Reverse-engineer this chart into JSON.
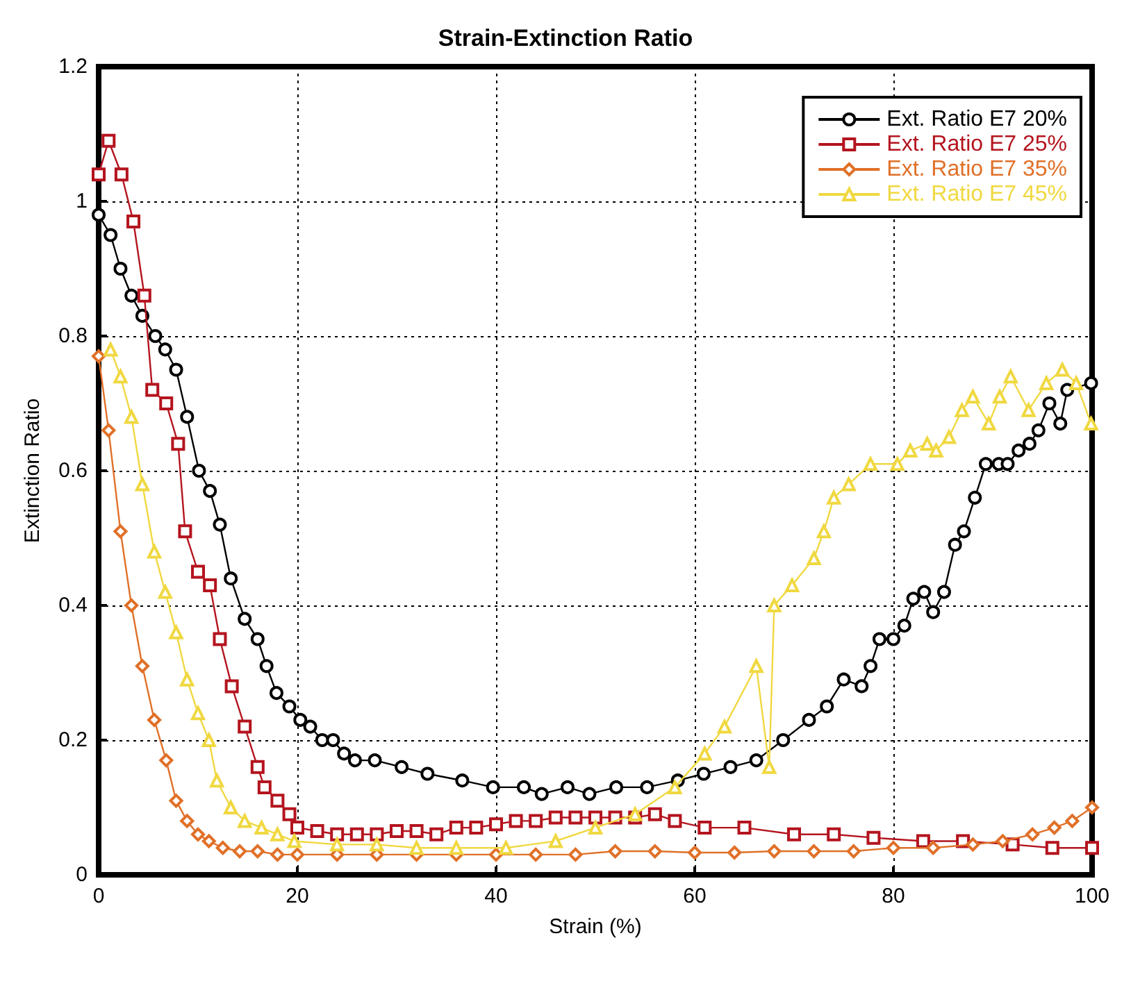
{
  "chart_data": {
    "type": "line",
    "title": "Strain-Extinction Ratio",
    "xlabel": "Strain (%)",
    "ylabel": "Extinction Ratio",
    "xlim": [
      0,
      100
    ],
    "xticks": [
      0,
      20,
      40,
      60,
      80,
      100
    ],
    "ylim": [
      0,
      1.2
    ],
    "yticks": [
      0,
      0.2,
      0.4,
      0.6,
      0.8,
      1,
      1.2
    ],
    "grid": true,
    "legend": "top right",
    "line_style": "solid",
    "series": [
      {
        "name": "Ext. Ratio E7 20%",
        "color": "#000000",
        "marker": "circle",
        "x": [
          0,
          1.2,
          2.2,
          3.3,
          4.4,
          5.7,
          6.7,
          7.8,
          8.9,
          10.1,
          11.2,
          12.2,
          13.3,
          14.7,
          16,
          16.9,
          17.9,
          19.2,
          20.3,
          21.3,
          22.5,
          23.6,
          24.7,
          25.8,
          27.8,
          30.5,
          33.1,
          36.6,
          39.7,
          42.8,
          44.6,
          47.2,
          49.4,
          52.1,
          55.2,
          58.3,
          60.9,
          63.6,
          66.2,
          68.9,
          71.5,
          73.3,
          75,
          76.8,
          77.7,
          78.6,
          80,
          81.1,
          82,
          83.1,
          84,
          85.1,
          86.2,
          87.1,
          88.2,
          89.3,
          90.6,
          91.5,
          92.6,
          93.7,
          94.6,
          95.7,
          96.8,
          97.5,
          99.9
        ],
        "values": [
          0.98,
          0.95,
          0.9,
          0.86,
          0.83,
          0.8,
          0.78,
          0.75,
          0.68,
          0.6,
          0.57,
          0.52,
          0.44,
          0.38,
          0.35,
          0.31,
          0.27,
          0.25,
          0.23,
          0.22,
          0.2,
          0.2,
          0.18,
          0.17,
          0.17,
          0.16,
          0.15,
          0.14,
          0.13,
          0.13,
          0.12,
          0.13,
          0.12,
          0.13,
          0.13,
          0.14,
          0.15,
          0.16,
          0.17,
          0.2,
          0.23,
          0.25,
          0.29,
          0.28,
          0.31,
          0.35,
          0.35,
          0.37,
          0.41,
          0.42,
          0.39,
          0.42,
          0.49,
          0.51,
          0.56,
          0.61,
          0.61,
          0.61,
          0.63,
          0.64,
          0.66,
          0.7,
          0.67,
          0.72,
          0.73
        ]
      },
      {
        "name": "Ext. Ratio E7 25%",
        "color": "#b4141e",
        "marker": "square",
        "x": [
          0,
          1,
          2.3,
          3.5,
          4.6,
          5.4,
          6.8,
          8,
          8.7,
          10,
          11.2,
          12.2,
          13.4,
          14.7,
          16,
          16.7,
          18,
          19.2,
          20,
          22,
          24,
          26,
          28,
          30,
          32,
          34,
          36,
          38,
          40,
          42,
          44,
          46,
          48,
          50,
          52,
          54,
          56,
          58,
          61,
          65,
          70,
          74,
          78,
          83,
          87,
          92,
          96,
          100
        ],
        "values": [
          1.04,
          1.09,
          1.04,
          0.97,
          0.86,
          0.72,
          0.7,
          0.64,
          0.51,
          0.45,
          0.43,
          0.35,
          0.28,
          0.22,
          0.16,
          0.13,
          0.11,
          0.09,
          0.07,
          0.065,
          0.06,
          0.06,
          0.06,
          0.065,
          0.065,
          0.06,
          0.07,
          0.07,
          0.075,
          0.08,
          0.08,
          0.085,
          0.085,
          0.085,
          0.085,
          0.085,
          0.09,
          0.08,
          0.07,
          0.07,
          0.06,
          0.06,
          0.055,
          0.05,
          0.05,
          0.045,
          0.04,
          0.04
        ]
      },
      {
        "name": "Ext. Ratio E7 35%",
        "color": "#e07028",
        "marker": "diamond",
        "x": [
          0,
          1,
          2.2,
          3.3,
          4.4,
          5.6,
          6.8,
          7.8,
          8.9,
          10,
          11.1,
          12.5,
          14.2,
          16,
          18,
          20,
          24,
          28,
          32,
          36,
          40,
          44,
          48,
          52,
          56,
          60,
          64,
          68,
          72,
          76,
          80,
          84,
          88,
          91,
          94,
          96.2,
          98,
          100
        ],
        "values": [
          0.77,
          0.66,
          0.51,
          0.4,
          0.31,
          0.23,
          0.17,
          0.11,
          0.08,
          0.06,
          0.05,
          0.04,
          0.035,
          0.035,
          0.03,
          0.03,
          0.03,
          0.03,
          0.03,
          0.03,
          0.03,
          0.03,
          0.03,
          0.035,
          0.035,
          0.033,
          0.033,
          0.035,
          0.035,
          0.035,
          0.04,
          0.04,
          0.045,
          0.05,
          0.06,
          0.07,
          0.08,
          0.1
        ]
      },
      {
        "name": "Ext. Ratio E7 45%",
        "color": "#f0d840",
        "marker": "triangle",
        "x": [
          1.2,
          2.2,
          3.3,
          4.4,
          5.6,
          6.7,
          7.8,
          8.9,
          10,
          11.1,
          11.9,
          13.3,
          14.7,
          16.4,
          18,
          19.7,
          24,
          28,
          32,
          36,
          41,
          46,
          50,
          54,
          58,
          61,
          63,
          66.2,
          67.5,
          68,
          69.8,
          72,
          73,
          74,
          75.5,
          77.7,
          80.4,
          81.7,
          83.4,
          84.3,
          85.6,
          86.9,
          88,
          89.6,
          90.7,
          91.8,
          93.6,
          95.4,
          97,
          98.4,
          99.9
        ],
        "values": [
          0.78,
          0.74,
          0.68,
          0.58,
          0.48,
          0.42,
          0.36,
          0.29,
          0.24,
          0.2,
          0.14,
          0.1,
          0.08,
          0.07,
          0.06,
          0.05,
          0.045,
          0.045,
          0.04,
          0.04,
          0.04,
          0.05,
          0.07,
          0.09,
          0.13,
          0.18,
          0.22,
          0.31,
          0.16,
          0.4,
          0.43,
          0.47,
          0.51,
          0.56,
          0.58,
          0.61,
          0.61,
          0.63,
          0.64,
          0.63,
          0.65,
          0.69,
          0.71,
          0.67,
          0.71,
          0.74,
          0.69,
          0.73,
          0.75,
          0.73,
          0.67
        ]
      }
    ]
  }
}
